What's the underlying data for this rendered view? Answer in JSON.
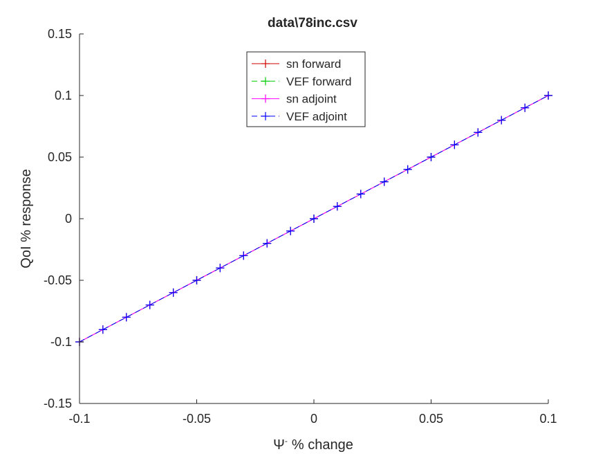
{
  "chart_data": {
    "type": "line",
    "title": "data\\78inc.csv",
    "xlabel": "% change",
    "xlabel_symbol": "Ψ",
    "xlabel_superscript": "-",
    "ylabel": "QoI % response",
    "xlim": [
      -0.1,
      0.1
    ],
    "ylim": [
      -0.15,
      0.15
    ],
    "xticks": [
      -0.1,
      -0.05,
      0,
      0.05,
      0.1
    ],
    "xtick_labels": [
      "-0.1",
      "-0.05",
      "0",
      "0.05",
      "0.1"
    ],
    "yticks": [
      -0.15,
      -0.1,
      -0.05,
      0,
      0.05,
      0.1,
      0.15
    ],
    "ytick_labels": [
      "-0.15",
      "-0.1",
      "-0.05",
      "0",
      "0.05",
      "0.1",
      "0.15"
    ],
    "x": [
      -0.1,
      -0.09,
      -0.08,
      -0.07,
      -0.06,
      -0.05,
      -0.04,
      -0.03,
      -0.02,
      -0.01,
      0,
      0.01,
      0.02,
      0.03,
      0.04,
      0.05,
      0.06,
      0.07,
      0.08,
      0.09,
      0.1
    ],
    "series": [
      {
        "name": "sn forward",
        "color": "#cc0000",
        "dash": "solid",
        "marker": "+",
        "values": [
          -0.1,
          -0.09,
          -0.08,
          -0.07,
          -0.06,
          -0.05,
          -0.04,
          -0.03,
          -0.02,
          -0.01,
          0,
          0.01,
          0.02,
          0.03,
          0.04,
          0.05,
          0.06,
          0.07,
          0.08,
          0.09,
          0.1
        ]
      },
      {
        "name": "VEF forward",
        "color": "#00cc00",
        "dash": "dashed",
        "marker": "+",
        "values": [
          -0.1,
          -0.09,
          -0.08,
          -0.07,
          -0.06,
          -0.05,
          -0.04,
          -0.03,
          -0.02,
          -0.01,
          0,
          0.01,
          0.02,
          0.03,
          0.04,
          0.05,
          0.06,
          0.07,
          0.08,
          0.09,
          0.1
        ]
      },
      {
        "name": "sn adjoint",
        "color": "#ff00ff",
        "dash": "solid",
        "marker": "+",
        "values": [
          -0.1,
          -0.09,
          -0.08,
          -0.07,
          -0.06,
          -0.05,
          -0.04,
          -0.03,
          -0.02,
          -0.01,
          0,
          0.01,
          0.02,
          0.03,
          0.04,
          0.05,
          0.06,
          0.07,
          0.08,
          0.09,
          0.1
        ]
      },
      {
        "name": "VEF adjoint",
        "color": "#0000ff",
        "dash": "dashed",
        "marker": "+",
        "values": [
          -0.1,
          -0.09,
          -0.08,
          -0.07,
          -0.06,
          -0.05,
          -0.04,
          -0.03,
          -0.02,
          -0.01,
          0,
          0.01,
          0.02,
          0.03,
          0.04,
          0.05,
          0.06,
          0.07,
          0.08,
          0.09,
          0.1
        ]
      }
    ],
    "legend_position": "top-center",
    "grid": false
  }
}
